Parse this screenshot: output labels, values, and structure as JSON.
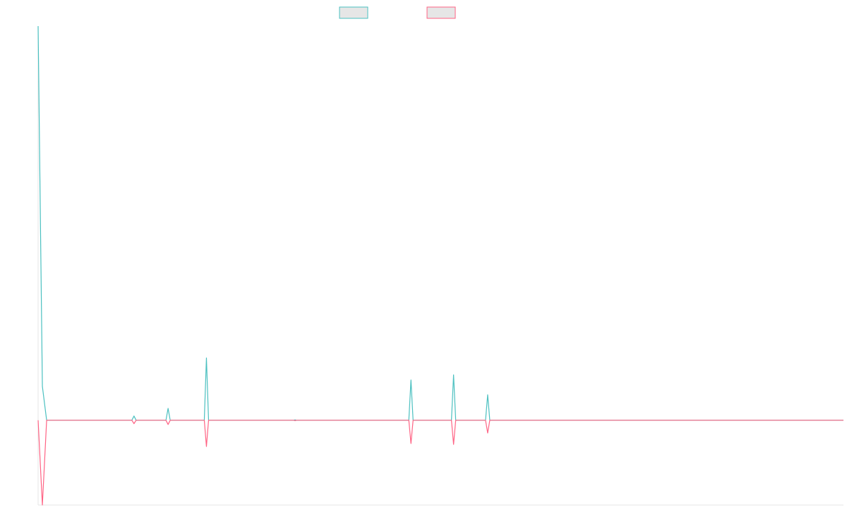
{
  "chart_data": {
    "type": "line",
    "title": "",
    "xlabel": "",
    "ylabel": "",
    "grid": false,
    "legend": "top-center",
    "colors": {
      "series_a": "#4bc0c0",
      "series_b": "#ff6384",
      "legend_fill": "#e6e6e6",
      "axis": "#e6e6e6"
    },
    "x_count": 189,
    "ylim": [
      -200,
      930
    ],
    "series": [
      {
        "id": "series_a",
        "points": [
          [
            0,
            930
          ],
          [
            1,
            80
          ],
          [
            2,
            0
          ],
          [
            22,
            0
          ],
          [
            22.5,
            10
          ],
          [
            23,
            0
          ],
          [
            30,
            0
          ],
          [
            30.5,
            28
          ],
          [
            31,
            0
          ],
          [
            39,
            0
          ],
          [
            39.5,
            147
          ],
          [
            40,
            0
          ],
          [
            60,
            0
          ],
          [
            60.3,
            1
          ],
          [
            60.6,
            0
          ],
          [
            87,
            0
          ],
          [
            87.5,
            95
          ],
          [
            88,
            0
          ],
          [
            97,
            0
          ],
          [
            97.5,
            107
          ],
          [
            98,
            0
          ],
          [
            105,
            0
          ],
          [
            105.5,
            60
          ],
          [
            106,
            0
          ],
          [
            189,
            0
          ]
        ]
      },
      {
        "id": "series_b",
        "points": [
          [
            0,
            0
          ],
          [
            1,
            -200
          ],
          [
            2,
            0
          ],
          [
            22,
            0
          ],
          [
            22.5,
            -8
          ],
          [
            23,
            0
          ],
          [
            30,
            0
          ],
          [
            30.5,
            -10
          ],
          [
            31,
            0
          ],
          [
            39,
            0
          ],
          [
            39.5,
            -62
          ],
          [
            40,
            0
          ],
          [
            60,
            0
          ],
          [
            60.3,
            -1
          ],
          [
            60.6,
            0
          ],
          [
            87,
            0
          ],
          [
            87.5,
            -55
          ],
          [
            88,
            0
          ],
          [
            97,
            0
          ],
          [
            97.5,
            -57
          ],
          [
            98,
            0
          ],
          [
            105,
            0
          ],
          [
            105.5,
            -30
          ],
          [
            106,
            0
          ],
          [
            189,
            0
          ]
        ]
      }
    ]
  }
}
